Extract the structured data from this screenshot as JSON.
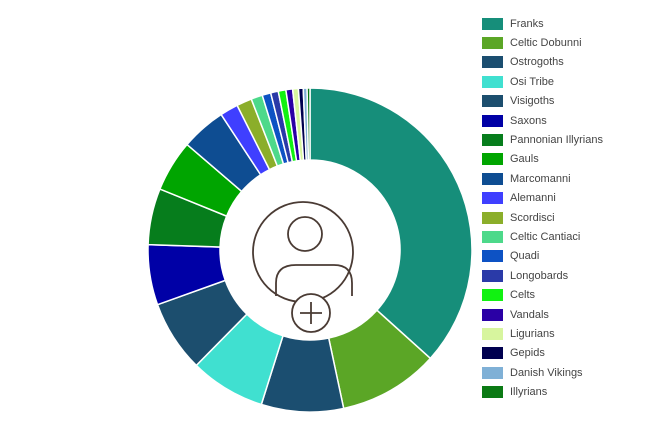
{
  "chart_data": {
    "type": "donut",
    "title": "",
    "legend_position": "right",
    "center_icon": "add-user-icon",
    "series": [
      {
        "name": "Franks",
        "value": 38.5,
        "color": "#168e7a"
      },
      {
        "name": "Celtic Dobunni",
        "value": 10.5,
        "color": "#5ba626"
      },
      {
        "name": "Ostrogoths",
        "value": 8.6,
        "color": "#1b4e70"
      },
      {
        "name": "Osi Tribe",
        "value": 7.9,
        "color": "#40e0d0"
      },
      {
        "name": "Visigoths",
        "value": 7.5,
        "color": "#1c4e6e"
      },
      {
        "name": "Saxons",
        "value": 6.3,
        "color": "#0000a6"
      },
      {
        "name": "Pannonian Illyrians",
        "value": 5.9,
        "color": "#067d1c"
      },
      {
        "name": "Gauls",
        "value": 5.4,
        "color": "#00a500"
      },
      {
        "name": "Marcomanni",
        "value": 4.7,
        "color": "#0e4d92"
      },
      {
        "name": "Alemanni",
        "value": 1.9,
        "color": "#3f3fff"
      },
      {
        "name": "Scordisci",
        "value": 1.6,
        "color": "#8bae2a"
      },
      {
        "name": "Celtic Cantiaci",
        "value": 1.2,
        "color": "#4dd98a"
      },
      {
        "name": "Quadi",
        "value": 0.9,
        "color": "#0d52c4"
      },
      {
        "name": "Longobards",
        "value": 0.8,
        "color": "#2a3aa8"
      },
      {
        "name": "Celts",
        "value": 0.8,
        "color": "#11f211"
      },
      {
        "name": "Vandals",
        "value": 0.7,
        "color": "#2a00a5"
      },
      {
        "name": "Ligurians",
        "value": 0.6,
        "color": "#d7f59e"
      },
      {
        "name": "Gepids",
        "value": 0.5,
        "color": "#00004f"
      },
      {
        "name": "Danish Vikings",
        "value": 0.4,
        "color": "#7fb0d6"
      },
      {
        "name": "Illyrians",
        "value": 0.3,
        "color": "#0b7a14"
      }
    ]
  }
}
